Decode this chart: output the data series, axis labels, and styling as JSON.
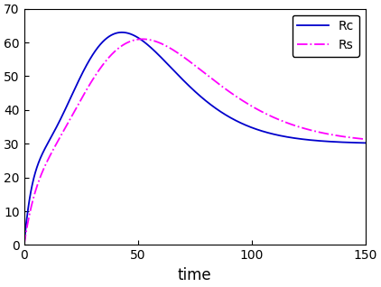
{
  "title": "",
  "xlabel": "time",
  "ylabel": "",
  "xlim": [
    0,
    150
  ],
  "ylim": [
    0,
    70
  ],
  "xticks": [
    0,
    50,
    100,
    150
  ],
  "yticks": [
    0,
    10,
    20,
    30,
    40,
    50,
    60,
    70
  ],
  "Rc_color": "#0000cc",
  "Rs_color": "#ff00ff",
  "Rc_linestyle": "solid",
  "Rs_linestyle": "dashdot",
  "Rc_linewidth": 1.3,
  "Rs_linewidth": 1.3,
  "legend_labels": [
    "Rc",
    "Rs"
  ],
  "legend_loc": "upper right",
  "background_color": "#ffffff",
  "Rc_peak_x": 43,
  "Rc_peak_y": 63,
  "Rs_peak_x": 52,
  "Rs_peak_y": 61,
  "steady_state": 30
}
